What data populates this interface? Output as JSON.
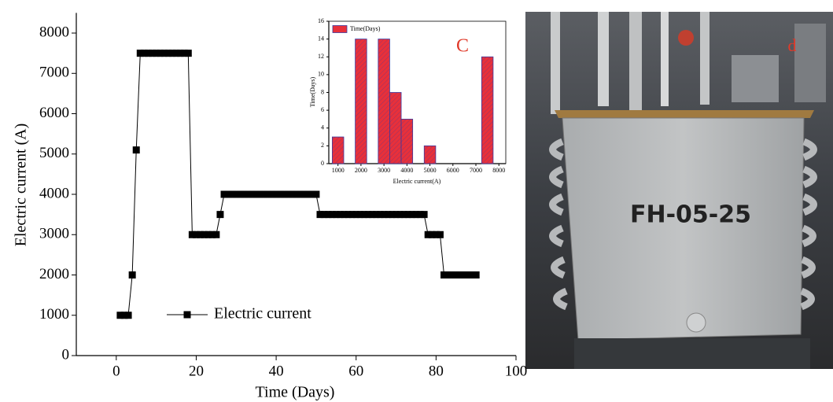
{
  "chart_data": [
    {
      "type": "line",
      "xlabel": "Time (Days)",
      "ylabel": "Electric current (A)",
      "x": [
        1,
        2,
        3,
        4,
        5,
        6,
        7,
        8,
        9,
        10,
        11,
        12,
        13,
        14,
        15,
        16,
        17,
        18,
        19,
        20,
        21,
        22,
        23,
        24,
        25,
        26,
        27,
        28,
        29,
        30,
        31,
        32,
        33,
        34,
        35,
        36,
        37,
        38,
        39,
        40,
        41,
        42,
        43,
        44,
        45,
        46,
        47,
        48,
        49,
        50,
        51,
        52,
        53,
        54,
        55,
        56,
        57,
        58,
        59,
        60,
        61,
        62,
        63,
        64,
        65,
        66,
        67,
        68,
        69,
        70,
        71,
        72,
        73,
        74,
        75,
        76,
        77,
        78,
        79,
        80,
        81,
        82,
        83,
        84,
        85,
        86,
        87,
        88,
        89,
        90
      ],
      "series": [
        {
          "name": "Electric current",
          "color": "#000000",
          "values": [
            1000,
            1000,
            1000,
            2000,
            5100,
            7500,
            7500,
            7500,
            7500,
            7500,
            7500,
            7500,
            7500,
            7500,
            7500,
            7500,
            7500,
            7500,
            3000,
            3000,
            3000,
            3000,
            3000,
            3000,
            3000,
            3500,
            4000,
            4000,
            4000,
            4000,
            4000,
            4000,
            4000,
            4000,
            4000,
            4000,
            4000,
            4000,
            4000,
            4000,
            4000,
            4000,
            4000,
            4000,
            4000,
            4000,
            4000,
            4000,
            4000,
            4000,
            3500,
            3500,
            3500,
            3500,
            3500,
            3500,
            3500,
            3500,
            3500,
            3500,
            3500,
            3500,
            3500,
            3500,
            3500,
            3500,
            3500,
            3500,
            3500,
            3500,
            3500,
            3500,
            3500,
            3500,
            3500,
            3500,
            3500,
            3000,
            3000,
            3000,
            3000,
            2000,
            2000,
            2000,
            2000,
            2000,
            2000,
            2000,
            2000,
            2000
          ]
        }
      ],
      "xlim": [
        -10,
        100
      ],
      "xticks": [
        0,
        20,
        40,
        60,
        80,
        100
      ],
      "ylim": [
        0,
        8500
      ],
      "yticks": [
        0,
        1000,
        2000,
        3000,
        4000,
        5000,
        6000,
        7000,
        8000
      ],
      "grid": false
    },
    {
      "type": "bar",
      "xlabel": "Electric current(A)",
      "ylabel": "Time(Days)",
      "annotation": "C",
      "x": [
        1000,
        2000,
        3000,
        3500,
        4000,
        5000,
        7500
      ],
      "series": [
        {
          "name": "Time(Days)",
          "color": "#e8303a",
          "values": [
            3,
            14,
            14,
            8,
            5,
            2,
            12
          ]
        }
      ],
      "xlim": [
        600,
        8300
      ],
      "xticks": [
        1000,
        2000,
        3000,
        4000,
        5000,
        6000,
        7000,
        8000
      ],
      "ylim": [
        0,
        16
      ],
      "yticks": [
        0,
        2,
        4,
        6,
        8,
        10,
        12,
        14,
        16
      ],
      "grid": false
    }
  ],
  "photo": {
    "panel_label": "d",
    "tank_label": "FH-05-25"
  }
}
